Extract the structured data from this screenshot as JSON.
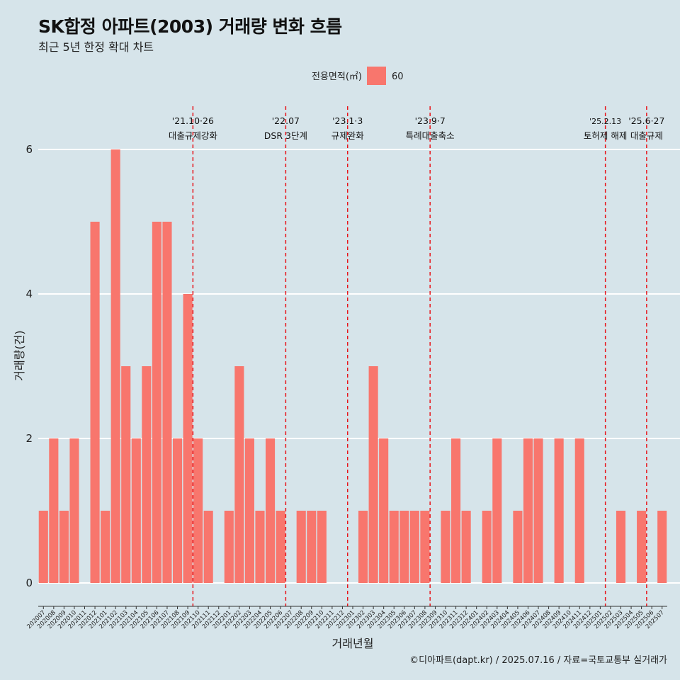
{
  "header": {
    "title": "SK합정 아파트(2003) 거래량 변화 흐름",
    "subtitle": "최근 5년 한정 확대 차트"
  },
  "caption": "©디아파트(dapt.kr) / 2025.07.16 / 자료=국토교통부 실거래가",
  "colors": {
    "background": "#d6e4ea",
    "bar": "#f8766d",
    "event_line": "#e8151b",
    "grid": "#ffffff"
  },
  "chart_data": {
    "type": "bar",
    "title": "SK합정 아파트(2003) 거래량 변화 흐름",
    "subtitle": "최근 5년 한정 확대 차트",
    "xlabel": "거래년월",
    "ylabel": "거래량(건)",
    "ylim": [
      -0.4,
      6.2
    ],
    "yticks": [
      0,
      2,
      4,
      6
    ],
    "grid": true,
    "legend": {
      "title": "전용면적(㎡)",
      "position": "top",
      "entries": [
        "60"
      ]
    },
    "categories": [
      "202007",
      "202008",
      "202009",
      "202010",
      "202011",
      "202012",
      "202101",
      "202102",
      "202103",
      "202104",
      "202105",
      "202106",
      "202107",
      "202108",
      "202109",
      "202110",
      "202111",
      "202112",
      "202201",
      "202202",
      "202203",
      "202204",
      "202205",
      "202206",
      "202207",
      "202208",
      "202209",
      "202210",
      "202211",
      "202212",
      "202301",
      "202302",
      "202303",
      "202304",
      "202305",
      "202306",
      "202307",
      "202308",
      "202309",
      "202310",
      "202311",
      "202312",
      "202401",
      "202402",
      "202403",
      "202404",
      "202405",
      "202406",
      "202407",
      "202408",
      "202409",
      "202410",
      "202411",
      "202412",
      "202501",
      "202502",
      "202503",
      "202504",
      "202505",
      "202506",
      "202507"
    ],
    "series": [
      {
        "name": "60",
        "values": [
          1,
          2,
          1,
          2,
          0,
          5,
          1,
          6,
          3,
          2,
          3,
          5,
          5,
          2,
          4,
          2,
          1,
          0,
          1,
          3,
          2,
          1,
          2,
          1,
          0,
          1,
          1,
          1,
          0,
          0,
          0,
          1,
          3,
          2,
          1,
          1,
          1,
          1,
          0,
          1,
          2,
          1,
          0,
          1,
          2,
          0,
          1,
          2,
          2,
          0,
          2,
          0,
          2,
          0,
          0,
          0,
          1,
          0,
          1,
          0,
          1
        ]
      }
    ],
    "annotations": [
      {
        "date_line1": "'21.10·26",
        "date_line2": "대출규제강화",
        "x": "202110"
      },
      {
        "date_line1": "'22.07",
        "date_line2": "DSR 3단계",
        "x": "202207"
      },
      {
        "date_line1": "'23.1·3",
        "date_line2": "규제완화",
        "x": "202301"
      },
      {
        "date_line1": "'23.9·7",
        "date_line2": "특례대출축소",
        "x": "202309"
      },
      {
        "date_line1": "'25.2.13",
        "date_line2": "토허제 해제",
        "x": "202502"
      },
      {
        "date_line1": "'25.6·27",
        "date_line2": "대출규제",
        "x": "202506"
      }
    ]
  }
}
